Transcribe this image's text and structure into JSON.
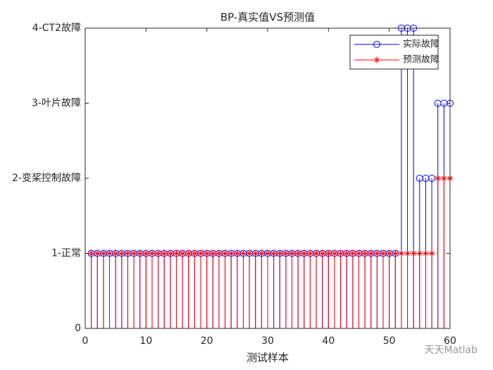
{
  "chart_data": {
    "type": "stem",
    "title": "BP-真实值VS预测值",
    "xlabel": "测试样本",
    "watermark": "天天Matlab",
    "x": [
      1,
      2,
      3,
      4,
      5,
      6,
      7,
      8,
      9,
      10,
      11,
      12,
      13,
      14,
      15,
      16,
      17,
      18,
      19,
      20,
      21,
      22,
      23,
      24,
      25,
      26,
      27,
      28,
      29,
      30,
      31,
      32,
      33,
      34,
      35,
      36,
      37,
      38,
      39,
      40,
      41,
      42,
      43,
      44,
      45,
      46,
      47,
      48,
      49,
      50,
      51,
      52,
      53,
      54,
      55,
      56,
      57,
      58,
      59,
      60
    ],
    "series": [
      {
        "name": "实际故障",
        "color": "#0000ff",
        "marker": "o",
        "values": [
          1,
          1,
          1,
          1,
          1,
          1,
          1,
          1,
          1,
          1,
          1,
          1,
          1,
          1,
          1,
          1,
          1,
          1,
          1,
          1,
          1,
          1,
          1,
          1,
          1,
          1,
          1,
          1,
          1,
          1,
          1,
          1,
          1,
          1,
          1,
          1,
          1,
          1,
          1,
          1,
          1,
          1,
          1,
          1,
          1,
          1,
          1,
          1,
          1,
          1,
          1,
          4,
          4,
          4,
          2,
          2,
          2,
          3,
          3,
          3
        ]
      },
      {
        "name": "预测故障",
        "color": "#ff0000",
        "marker": "*",
        "values": [
          1,
          1,
          1,
          1,
          1,
          1,
          1,
          1,
          1,
          1,
          1,
          1,
          1,
          1,
          1,
          1,
          1,
          1,
          1,
          1,
          1,
          1,
          1,
          1,
          1,
          1,
          1,
          1,
          1,
          1,
          1,
          1,
          1,
          1,
          1,
          1,
          1,
          1,
          1,
          1,
          1,
          1,
          1,
          1,
          1,
          1,
          1,
          1,
          1,
          1,
          1,
          1,
          1,
          1,
          1,
          1,
          1,
          2,
          2,
          2
        ]
      }
    ],
    "xlim": [
      0,
      60
    ],
    "xticks": [
      0,
      10,
      20,
      30,
      40,
      50,
      60
    ],
    "ylim": [
      0,
      4
    ],
    "yticks": [
      0,
      {
        "value": 1,
        "label": "1-正常"
      },
      {
        "value": 2,
        "label": "2-变桨控制故障"
      },
      {
        "value": 3,
        "label": "3-叶片故障"
      },
      {
        "value": 4,
        "label": "4-CT2故障"
      }
    ],
    "legend": "northeast"
  }
}
